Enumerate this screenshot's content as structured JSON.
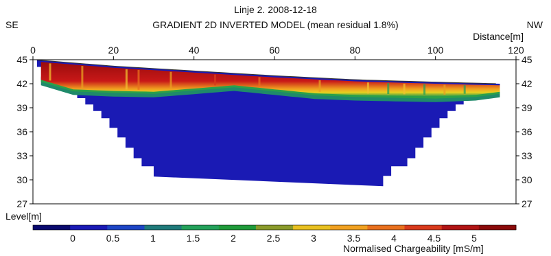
{
  "header": {
    "title": "Linje 2. 2008-12-18",
    "subtitle": "GRADIENT 2D INVERTED MODEL (mean residual 1.8%)",
    "left_direction": "SE",
    "right_direction": "NW"
  },
  "chart_data": {
    "type": "heatmap",
    "title": "Linje 2. 2008-12-18",
    "subtitle": "GRADIENT 2D INVERTED MODEL (mean residual 1.8%)",
    "xlabel": "Distance[m]",
    "ylabel": "Level[m]",
    "xlim": [
      0,
      120
    ],
    "ylim": [
      27,
      45
    ],
    "x_ticks": [
      "0",
      "20",
      "40",
      "60",
      "80",
      "100",
      "120"
    ],
    "y_ticks": [
      "45",
      "42",
      "39",
      "36",
      "33",
      "30",
      "27"
    ],
    "grid": false,
    "colorbar": {
      "label": "Normalised Chargeability [mS/m]",
      "tick_labels": [
        "0",
        "0.5",
        "1",
        "1.5",
        "2",
        "2.5",
        "3",
        "3.5",
        "4",
        "4.5",
        "5"
      ],
      "colors": [
        "#0a0a6e",
        "#1a1ab4",
        "#1d45c4",
        "#1f7a7a",
        "#23a15a",
        "#1f9a3a",
        "#8a9a2a",
        "#e8c020",
        "#f0a020",
        "#e8701e",
        "#d83a1c",
        "#b01414",
        "#8a0a0a"
      ]
    },
    "surface": {
      "x": [
        0,
        20,
        40,
        60,
        80,
        100,
        116
      ],
      "y": [
        45.0,
        44.2,
        43.6,
        43.0,
        42.5,
        42.2,
        42.0
      ]
    },
    "top_layer_base": {
      "x": [
        2,
        10,
        20,
        30,
        40,
        50,
        60,
        70,
        80,
        90,
        100,
        110,
        116
      ],
      "y": [
        42.5,
        41.3,
        41.1,
        41.0,
        41.4,
        41.8,
        41.3,
        40.8,
        40.6,
        40.5,
        40.4,
        40.6,
        41.0
      ]
    },
    "model_bottom": {
      "x": [
        30,
        87
      ],
      "y": [
        30.5,
        29.4
      ]
    },
    "colors": {
      "low": "#1a1ab4",
      "transition_green": "#2a8a4a",
      "transition_yellow": "#f0c030",
      "high": "#b01414",
      "frame": "#000000"
    }
  },
  "labels": {
    "distance": "Distance[m]",
    "level": "Level[m]",
    "colorbar": "Normalised Chargeability [mS/m]"
  }
}
